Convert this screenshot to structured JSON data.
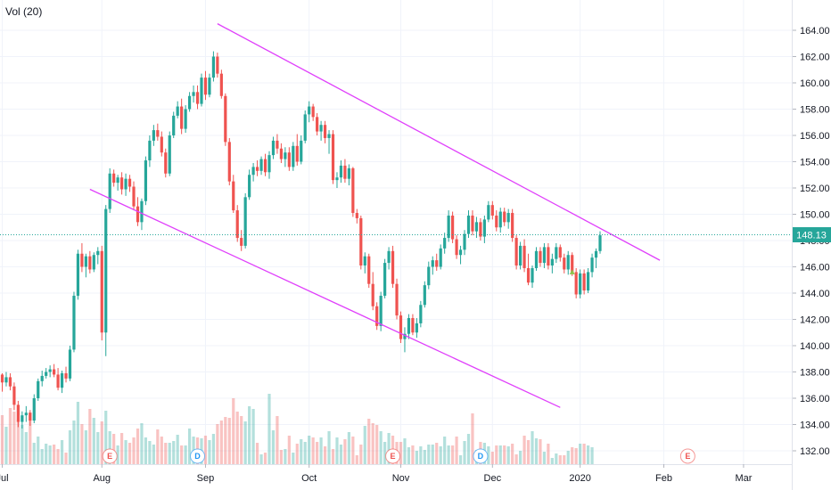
{
  "legend": {
    "volume_label": "Vol (20)"
  },
  "chart_data": {
    "type": "candlestick",
    "price_axis": {
      "ticks": [
        132,
        134,
        136,
        138,
        140,
        142,
        144,
        146,
        148,
        150,
        152,
        154,
        156,
        158,
        160,
        162,
        164
      ],
      "tick_labels": [
        "132.00",
        "134.00",
        "136.00",
        "138.00",
        "140.00",
        "142.00",
        "144.00",
        "146.00",
        "148.00",
        "150.00",
        "152.00",
        "154.00",
        "156.00",
        "158.00",
        "160.00",
        "162.00",
        "164.00"
      ],
      "range": [
        131,
        165
      ]
    },
    "time_axis": {
      "labels": [
        "Jul",
        "Aug",
        "Sep",
        "Oct",
        "Nov",
        "Dec",
        "2020",
        "Feb",
        "Mar"
      ],
      "label_bar_index": [
        0,
        25,
        51,
        77,
        100,
        123,
        145,
        166,
        186
      ],
      "range_bars": [
        -3,
        197
      ]
    },
    "last_price": {
      "value": 148.13,
      "label": "148.13",
      "color": "#26a69a"
    },
    "colors": {
      "up": "#26a69a",
      "down": "#ef5350",
      "trendline": "#e040fb",
      "grid": "#f0f3fa"
    },
    "candles": [
      [
        137.8,
        137.9,
        136.5,
        137.2
      ],
      [
        137.2,
        138.0,
        136.9,
        137.6
      ],
      [
        137.6,
        137.9,
        136.6,
        136.9
      ],
      [
        136.9,
        137.2,
        135.1,
        135.5
      ],
      [
        135.5,
        135.8,
        133.8,
        134.2
      ],
      [
        134.2,
        135.0,
        133.7,
        134.7
      ],
      [
        134.7,
        135.4,
        134.2,
        134.9
      ],
      [
        134.9,
        135.1,
        133.9,
        134.3
      ],
      [
        134.3,
        136.3,
        134.1,
        136.0
      ],
      [
        136.0,
        137.5,
        135.8,
        137.3
      ],
      [
        137.3,
        138.1,
        136.9,
        137.7
      ],
      [
        137.7,
        138.3,
        137.5,
        138.0
      ],
      [
        138.0,
        138.5,
        137.6,
        138.2
      ],
      [
        138.2,
        138.6,
        137.6,
        137.8
      ],
      [
        137.8,
        138.3,
        136.6,
        136.8
      ],
      [
        136.8,
        138.1,
        136.4,
        137.9
      ],
      [
        137.9,
        138.4,
        137.2,
        137.5
      ],
      [
        137.5,
        140.0,
        137.3,
        139.7
      ],
      [
        139.7,
        144.1,
        139.5,
        143.8
      ],
      [
        143.8,
        147.3,
        143.5,
        147.0
      ],
      [
        147.0,
        147.8,
        145.6,
        146.0
      ],
      [
        146.0,
        147.0,
        145.2,
        146.8
      ],
      [
        146.8,
        147.2,
        145.5,
        145.8
      ],
      [
        145.8,
        147.1,
        145.6,
        146.9
      ],
      [
        146.9,
        147.5,
        146.2,
        147.2
      ],
      [
        147.2,
        147.6,
        140.4,
        141.0
      ],
      [
        141.0,
        150.7,
        139.2,
        150.4
      ],
      [
        150.4,
        153.5,
        150.1,
        153.1
      ],
      [
        153.1,
        153.4,
        152.1,
        152.4
      ],
      [
        152.4,
        153.0,
        151.8,
        152.8
      ],
      [
        152.8,
        153.2,
        151.5,
        151.9
      ],
      [
        151.9,
        153.1,
        151.4,
        152.7
      ],
      [
        152.7,
        153.0,
        151.7,
        152.1
      ],
      [
        152.1,
        152.5,
        150.3,
        150.6
      ],
      [
        150.6,
        151.3,
        149.1,
        149.4
      ],
      [
        149.4,
        151.2,
        148.8,
        151.0
      ],
      [
        151.0,
        154.4,
        150.7,
        154.1
      ],
      [
        154.1,
        156.0,
        153.6,
        155.6
      ],
      [
        155.6,
        156.8,
        155.2,
        156.4
      ],
      [
        156.4,
        156.9,
        155.6,
        155.9
      ],
      [
        155.9,
        156.3,
        154.4,
        154.7
      ],
      [
        154.7,
        155.0,
        152.8,
        153.1
      ],
      [
        153.1,
        156.3,
        152.9,
        156.0
      ],
      [
        156.0,
        157.8,
        155.8,
        157.5
      ],
      [
        157.5,
        158.6,
        157.3,
        158.2
      ],
      [
        158.2,
        158.8,
        156.1,
        156.5
      ],
      [
        156.5,
        158.3,
        156.2,
        158.0
      ],
      [
        158.0,
        159.3,
        157.8,
        159.0
      ],
      [
        159.0,
        159.8,
        158.5,
        159.3
      ],
      [
        159.3,
        159.8,
        158.0,
        158.4
      ],
      [
        158.4,
        160.7,
        158.2,
        160.4
      ],
      [
        160.4,
        160.9,
        158.7,
        159.1
      ],
      [
        159.1,
        160.7,
        158.9,
        160.4
      ],
      [
        160.4,
        162.4,
        160.1,
        162.0
      ],
      [
        162.0,
        162.3,
        160.4,
        160.7
      ],
      [
        160.7,
        161.0,
        158.8,
        159.0
      ],
      [
        159.0,
        159.2,
        155.2,
        155.5
      ],
      [
        155.5,
        155.8,
        152.2,
        152.5
      ],
      [
        152.5,
        153.0,
        150.1,
        150.3
      ],
      [
        150.3,
        150.7,
        147.9,
        148.2
      ],
      [
        148.2,
        148.8,
        147.2,
        147.6
      ],
      [
        147.6,
        151.6,
        147.4,
        151.3
      ],
      [
        151.3,
        153.4,
        151.1,
        153.0
      ],
      [
        153.0,
        153.9,
        152.5,
        153.6
      ],
      [
        153.6,
        154.1,
        152.9,
        153.3
      ],
      [
        153.3,
        154.4,
        153.0,
        154.2
      ],
      [
        154.2,
        154.6,
        152.9,
        153.2
      ],
      [
        153.2,
        154.8,
        152.7,
        154.5
      ],
      [
        154.5,
        155.9,
        154.2,
        155.6
      ],
      [
        155.6,
        156.1,
        154.6,
        155.0
      ],
      [
        155.0,
        155.4,
        153.9,
        154.2
      ],
      [
        154.2,
        155.1,
        153.6,
        154.7
      ],
      [
        154.7,
        155.1,
        153.3,
        153.6
      ],
      [
        153.6,
        155.5,
        153.3,
        155.2
      ],
      [
        155.2,
        156.1,
        153.7,
        154.0
      ],
      [
        154.0,
        156.0,
        153.8,
        155.6
      ],
      [
        155.6,
        157.9,
        155.4,
        157.6
      ],
      [
        157.6,
        158.6,
        157.0,
        158.2
      ],
      [
        158.2,
        158.4,
        157.1,
        157.4
      ],
      [
        157.4,
        157.7,
        156.0,
        156.3
      ],
      [
        156.3,
        157.1,
        155.6,
        156.8
      ],
      [
        156.8,
        157.1,
        155.4,
        155.8
      ],
      [
        155.8,
        156.4,
        154.6,
        156.1
      ],
      [
        156.1,
        156.4,
        152.3,
        152.6
      ],
      [
        152.6,
        153.2,
        152.0,
        152.8
      ],
      [
        152.8,
        154.1,
        152.4,
        153.7
      ],
      [
        153.7,
        154.2,
        152.4,
        152.7
      ],
      [
        152.7,
        153.8,
        152.2,
        153.5
      ],
      [
        153.5,
        153.6,
        149.8,
        150.1
      ],
      [
        150.1,
        150.4,
        149.3,
        149.7
      ],
      [
        149.7,
        149.9,
        145.8,
        146.1
      ],
      [
        146.1,
        147.1,
        145.5,
        146.8
      ],
      [
        146.8,
        147.0,
        144.4,
        144.7
      ],
      [
        144.7,
        145.6,
        142.7,
        143.0
      ],
      [
        143.0,
        143.3,
        141.2,
        141.5
      ],
      [
        141.5,
        144.1,
        141.1,
        143.8
      ],
      [
        143.8,
        146.6,
        143.6,
        146.3
      ],
      [
        146.3,
        147.5,
        145.8,
        147.2
      ],
      [
        147.2,
        147.6,
        144.4,
        144.7
      ],
      [
        144.7,
        145.1,
        142.0,
        142.3
      ],
      [
        142.3,
        142.6,
        140.2,
        140.5
      ],
      [
        140.5,
        141.4,
        139.5,
        140.9
      ],
      [
        140.9,
        142.4,
        140.5,
        142.1
      ],
      [
        142.1,
        142.4,
        140.8,
        141.0
      ],
      [
        141.0,
        142.1,
        140.6,
        141.7
      ],
      [
        141.7,
        143.4,
        141.4,
        143.1
      ],
      [
        143.1,
        144.9,
        142.9,
        144.6
      ],
      [
        144.6,
        146.4,
        144.3,
        146.0
      ],
      [
        146.0,
        146.8,
        145.4,
        146.5
      ],
      [
        146.5,
        147.0,
        145.7,
        146.0
      ],
      [
        146.0,
        147.7,
        145.8,
        147.4
      ],
      [
        147.4,
        148.6,
        147.0,
        148.2
      ],
      [
        148.2,
        150.3,
        147.9,
        149.9
      ],
      [
        149.9,
        150.2,
        147.8,
        148.1
      ],
      [
        148.1,
        148.4,
        146.6,
        146.9
      ],
      [
        146.9,
        147.6,
        146.2,
        147.3
      ],
      [
        147.3,
        148.8,
        146.9,
        148.5
      ],
      [
        148.5,
        150.3,
        148.2,
        149.9
      ],
      [
        149.9,
        150.3,
        148.4,
        148.7
      ],
      [
        148.7,
        149.8,
        148.2,
        149.4
      ],
      [
        149.4,
        149.7,
        148.0,
        148.3
      ],
      [
        148.3,
        149.9,
        147.8,
        149.6
      ],
      [
        149.6,
        151.0,
        149.4,
        150.7
      ],
      [
        150.7,
        151.0,
        149.6,
        149.9
      ],
      [
        149.9,
        150.3,
        148.7,
        149.0
      ],
      [
        149.0,
        150.5,
        148.6,
        150.2
      ],
      [
        150.2,
        150.5,
        149.1,
        149.4
      ],
      [
        149.4,
        150.4,
        148.9,
        150.1
      ],
      [
        150.1,
        150.4,
        147.9,
        148.2
      ],
      [
        148.2,
        148.4,
        145.8,
        146.1
      ],
      [
        146.1,
        147.9,
        145.8,
        147.6
      ],
      [
        147.6,
        148.1,
        145.6,
        145.9
      ],
      [
        145.9,
        147.0,
        144.6,
        144.8
      ],
      [
        144.8,
        146.1,
        144.4,
        145.9
      ],
      [
        145.9,
        147.5,
        145.7,
        147.2
      ],
      [
        147.2,
        147.5,
        146.0,
        146.3
      ],
      [
        146.3,
        147.8,
        145.9,
        147.5
      ],
      [
        147.5,
        147.8,
        145.8,
        146.1
      ],
      [
        146.1,
        147.0,
        145.5,
        146.6
      ],
      [
        146.6,
        147.8,
        146.3,
        147.5
      ],
      [
        147.5,
        147.7,
        146.4,
        146.7
      ],
      [
        146.7,
        147.0,
        145.5,
        145.8
      ],
      [
        145.8,
        147.2,
        145.4,
        146.9
      ],
      [
        146.9,
        147.1,
        145.3,
        145.6
      ],
      [
        145.6,
        145.9,
        143.6,
        143.9
      ],
      [
        143.9,
        145.8,
        143.6,
        145.5
      ],
      [
        145.5,
        145.8,
        143.9,
        144.2
      ],
      [
        144.2,
        145.9,
        144.0,
        145.6
      ],
      [
        145.6,
        147.0,
        145.2,
        146.7
      ],
      [
        146.7,
        147.4,
        145.9,
        147.2
      ],
      [
        147.2,
        148.7,
        147.0,
        148.4
      ]
    ],
    "volume_heights": [
      55,
      42,
      63,
      59,
      50,
      44,
      36,
      58,
      24,
      31,
      17,
      23,
      21,
      22,
      17,
      27,
      13,
      38,
      49,
      70,
      45,
      38,
      62,
      52,
      36,
      48,
      60,
      37,
      34,
      21,
      35,
      27,
      24,
      30,
      40,
      46,
      30,
      26,
      22,
      39,
      31,
      24,
      24,
      26,
      33,
      21,
      21,
      40,
      31,
      30,
      29,
      32,
      27,
      34,
      45,
      49,
      53,
      52,
      74,
      59,
      54,
      48,
      65,
      62,
      24,
      11,
      13,
      79,
      38,
      54,
      16,
      17,
      32,
      13,
      23,
      28,
      25,
      32,
      30,
      25,
      30,
      20,
      37,
      17,
      30,
      22,
      28,
      36,
      31,
      10,
      22,
      43,
      51,
      46,
      44,
      37,
      25,
      35,
      32,
      25,
      25,
      29,
      19,
      21,
      15,
      20,
      16,
      22,
      22,
      24,
      20,
      31,
      21,
      21,
      31,
      10,
      26,
      34,
      57,
      16,
      25,
      24,
      20,
      14,
      21,
      21,
      21,
      20,
      23,
      11,
      15,
      32,
      27,
      37,
      29,
      28,
      14,
      23,
      7,
      12,
      10,
      10,
      15,
      19,
      18,
      23,
      23,
      21,
      19
    ]
  },
  "trendlines": [
    {
      "name": "upper",
      "p1": [
        54,
        164.5
      ],
      "p2": [
        165,
        146.5
      ]
    },
    {
      "name": "lower",
      "p1": [
        22,
        151.9
      ],
      "p2": [
        140,
        135.3
      ]
    }
  ],
  "event_badges": [
    {
      "letter": "E",
      "bar": 27,
      "color": "#ef5350"
    },
    {
      "letter": "D",
      "bar": 49,
      "color": "#2196f3"
    },
    {
      "letter": "E",
      "bar": 98,
      "color": "#ef5350"
    },
    {
      "letter": "D",
      "bar": 120,
      "color": "#2196f3"
    },
    {
      "letter": "E",
      "bar": 172,
      "color": "#ef5350"
    }
  ],
  "marker": {
    "shape": "up-triangle",
    "bar": 143,
    "price": 145.6,
    "color": "#8bc34a"
  }
}
